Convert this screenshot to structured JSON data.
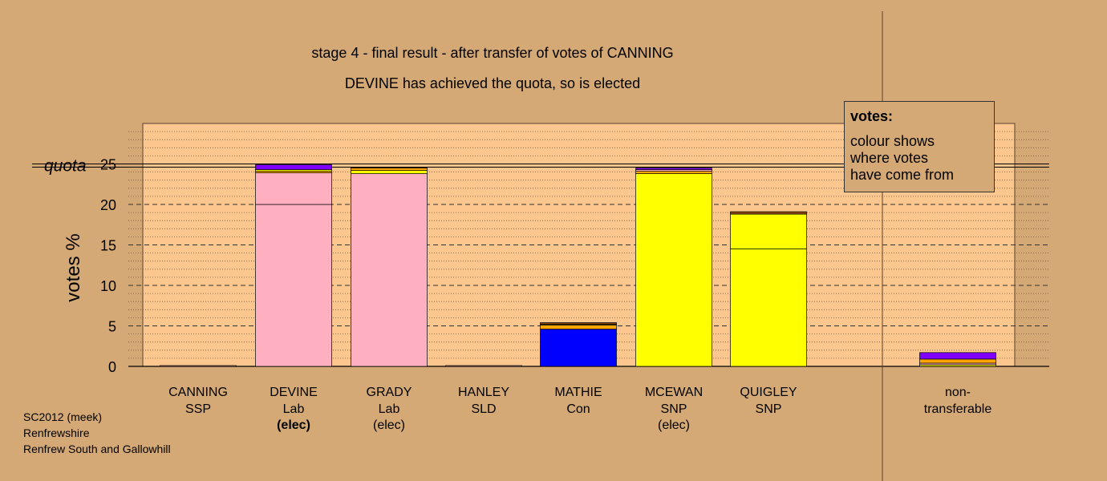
{
  "chart_data": {
    "type": "bar",
    "title": "stage 4 - final result - after transfer of votes of CANNING",
    "subtitle": "DEVINE has achieved the quota, so is elected",
    "ylabel": "votes %",
    "ylim": [
      0,
      30
    ],
    "yticks": [
      0,
      5,
      10,
      15,
      20,
      25
    ],
    "quota": 24.8,
    "quota_label": "quota",
    "grid": true,
    "candidates": [
      {
        "name": "CANNING",
        "party": "SSP",
        "status": "",
        "segments": [
          {
            "color": "#ffb0c0",
            "value": 0.1
          }
        ]
      },
      {
        "name": "DEVINE",
        "party": "Lab",
        "status": "(elec)",
        "status_bold": true,
        "segments": [
          {
            "color": "#ffb0c0",
            "value": 20.0
          },
          {
            "color": "#ffb0c0",
            "value": 3.9
          },
          {
            "color": "#ffa500",
            "value": 0.2
          },
          {
            "color": "#ffff00",
            "value": 0.2
          },
          {
            "color": "#8000ff",
            "value": 0.6
          }
        ]
      },
      {
        "name": "GRADY",
        "party": "Lab",
        "status": "(elec)",
        "segments": [
          {
            "color": "#ffb0c0",
            "value": 23.8
          },
          {
            "color": "#ffff00",
            "value": 0.4
          },
          {
            "color": "#ffa500",
            "value": 0.3
          },
          {
            "color": "#8b4513",
            "value": 0.1
          }
        ]
      },
      {
        "name": "HANLEY",
        "party": "SLD",
        "status": "",
        "segments": [
          {
            "color": "#ffb0c0",
            "value": 0.1
          }
        ]
      },
      {
        "name": "MATHIE",
        "party": "Con",
        "status": "",
        "segments": [
          {
            "color": "#0000ff",
            "value": 4.6
          },
          {
            "color": "#ffa500",
            "value": 0.5
          },
          {
            "color": "#ffff00",
            "value": 0.1
          },
          {
            "color": "#8b4513",
            "value": 0.2
          }
        ]
      },
      {
        "name": "MCEWAN",
        "party": "SNP",
        "status": "(elec)",
        "segments": [
          {
            "color": "#ffff00",
            "value": 23.8
          },
          {
            "color": "#ffa500",
            "value": 0.3
          },
          {
            "color": "#ffb0c0",
            "value": 0.2
          },
          {
            "color": "#8000ff",
            "value": 0.2
          }
        ]
      },
      {
        "name": "QUIGLEY",
        "party": "SNP",
        "status": "",
        "segments": [
          {
            "color": "#ffff00",
            "value": 14.5
          },
          {
            "color": "#ffff00",
            "value": 4.3
          },
          {
            "color": "#8b4513",
            "value": 0.3
          }
        ]
      }
    ],
    "nontransferable": {
      "label_line1": "non-",
      "label_line2": "transferable",
      "segments": [
        {
          "color": "#ffff00",
          "value": 0.2
        },
        {
          "color": "#ffb0c0",
          "value": 0.2
        },
        {
          "color": "#ffa500",
          "value": 0.5
        },
        {
          "color": "#8000ff",
          "value": 0.8
        }
      ]
    }
  },
  "legend": {
    "title": "votes:",
    "line1": "colour shows",
    "line2": "where votes",
    "line3": "have come from"
  },
  "footer": {
    "line1": "SC2012 (meek)",
    "line2": "Renfrewshire",
    "line3": "Renfrew South and Gallowhill"
  }
}
